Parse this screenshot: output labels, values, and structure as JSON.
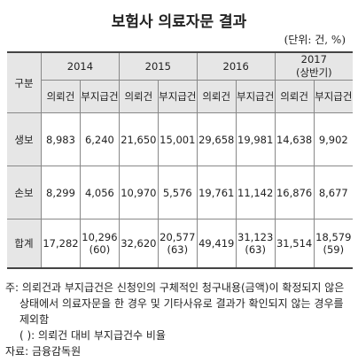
{
  "header": {
    "title": "보험사 의료자문 결과",
    "unit": "(단위: 건, %)"
  },
  "table": {
    "corner": "구분",
    "years": [
      [
        "2014"
      ],
      [
        "2015"
      ],
      [
        "2016"
      ],
      [
        "2017",
        "(상반기)"
      ]
    ],
    "subheaders": [
      "의뢰건",
      "부지급건",
      "의뢰건",
      "부지급건",
      "의뢰건",
      "부지급건",
      "의뢰건",
      "부지급건"
    ],
    "rows": [
      {
        "label": "생보",
        "cells": [
          [
            "8,983"
          ],
          [
            "6,240"
          ],
          [
            "21,650"
          ],
          [
            "15,001"
          ],
          [
            "29,658"
          ],
          [
            "19,981"
          ],
          [
            "14,638"
          ],
          [
            "9,902"
          ]
        ]
      },
      {
        "label": "손보",
        "cells": [
          [
            "8,299"
          ],
          [
            "4,056"
          ],
          [
            "10,970"
          ],
          [
            "5,576"
          ],
          [
            "19,761"
          ],
          [
            "11,142"
          ],
          [
            "16,876"
          ],
          [
            "8,677"
          ]
        ]
      },
      {
        "label": "합계",
        "cells": [
          [
            "17,282"
          ],
          [
            "10,296",
            "(60)"
          ],
          [
            "32,620"
          ],
          [
            "20,577",
            "(63)"
          ],
          [
            "49,419"
          ],
          [
            "31,123",
            "(63)"
          ],
          [
            "31,514"
          ],
          [
            "18,579",
            "(59)"
          ]
        ]
      }
    ]
  },
  "notes": {
    "note": "주: 의뢰건과 부지급건은 신청인의 구체적인 청구내용(금액)이 확정되지 않은 상태에서 의료자문을 한 경우 및 기타사유로 결과가 확인되지 않는 경우를 제외함",
    "ratio": "( ): 의뢰건 대비 부지급건수 비율",
    "source": "자료: 금융감독원"
  }
}
